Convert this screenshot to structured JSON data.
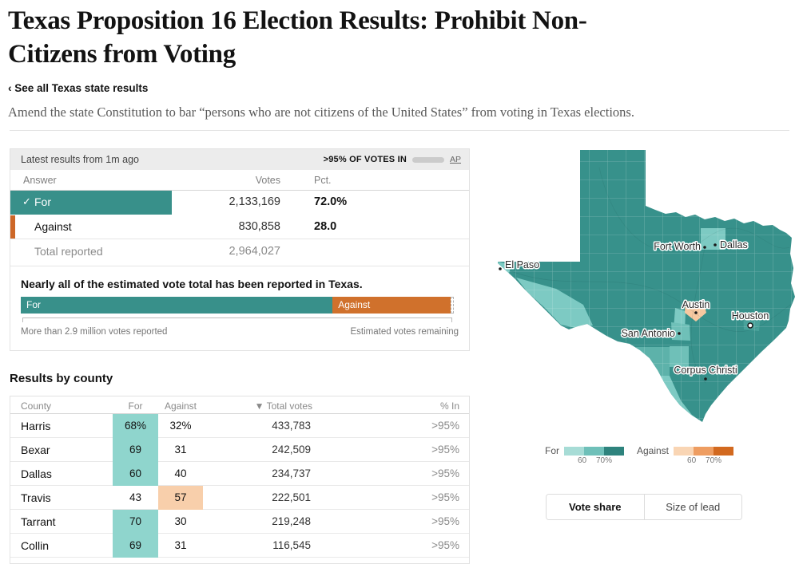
{
  "header": {
    "title": "Texas Proposition 16 Election Results: Prohibit Non-Citizens from Voting",
    "back_link": "‹ See all Texas state results",
    "description": "Amend the state Constitution to bar “persons who are not citizens of the United States” from voting in Texas elections."
  },
  "results_panel": {
    "latest_label": "Latest results from 1m ago",
    "votes_in_label": ">95% OF VOTES IN",
    "votes_in_fill_pct": 93,
    "source": "AP",
    "table": {
      "headers": {
        "answer": "Answer",
        "votes": "Votes",
        "pct": "Pct."
      },
      "rows": [
        {
          "answer": "For",
          "votes": "2,133,169",
          "pct": "72.0%",
          "bar_pct": 72,
          "winner": true
        },
        {
          "answer": "Against",
          "votes": "830,858",
          "pct": "28.0",
          "bar_pct": 28,
          "winner": false
        }
      ],
      "total_label": "Total reported",
      "total_votes": "2,964,027"
    },
    "estimate": {
      "heading": "Nearly all of the estimated vote total has been reported in Texas.",
      "for_label": "For",
      "against_label": "Against",
      "for_pct": 72,
      "against_pct": 27.2,
      "left_note": "More than 2.9 million votes reported",
      "right_note": "Estimated votes remaining"
    }
  },
  "county_section": {
    "heading": "Results by county",
    "headers": {
      "county": "County",
      "for": "For",
      "against": "Against",
      "total": "▼ Total votes",
      "pct_in": "% In"
    },
    "rows": [
      {
        "county": "Harris",
        "for": "68%",
        "against": "32%",
        "total": "433,783",
        "pct_in": ">95%",
        "highlight": "for"
      },
      {
        "county": "Bexar",
        "for": "69",
        "against": "31",
        "total": "242,509",
        "pct_in": ">95%",
        "highlight": "for"
      },
      {
        "county": "Dallas",
        "for": "60",
        "against": "40",
        "total": "234,737",
        "pct_in": ">95%",
        "highlight": "for"
      },
      {
        "county": "Travis",
        "for": "43",
        "against": "57",
        "total": "222,501",
        "pct_in": ">95%",
        "highlight": "against"
      },
      {
        "county": "Tarrant",
        "for": "70",
        "against": "30",
        "total": "219,248",
        "pct_in": ">95%",
        "highlight": "for"
      },
      {
        "county": "Collin",
        "for": "69",
        "against": "31",
        "total": "116,545",
        "pct_in": ">95%",
        "highlight": "for"
      }
    ]
  },
  "map": {
    "cities": [
      "El Paso",
      "Fort Worth",
      "Dallas",
      "Austin",
      "Houston",
      "San Antonio",
      "Corpus Christi"
    ],
    "legend": {
      "for_label": "For",
      "against_label": "Against",
      "tick_60": "60",
      "tick_70": "70%",
      "for_colors": [
        "#a7dcd6",
        "#6fc0b9",
        "#2e837d"
      ],
      "against_colors": [
        "#f9d5b4",
        "#ee9d61",
        "#d2691f"
      ]
    },
    "base_color": "#37918b",
    "buttons": [
      {
        "label": "Vote share",
        "active": true
      },
      {
        "label": "Size of lead",
        "active": false
      }
    ]
  }
}
